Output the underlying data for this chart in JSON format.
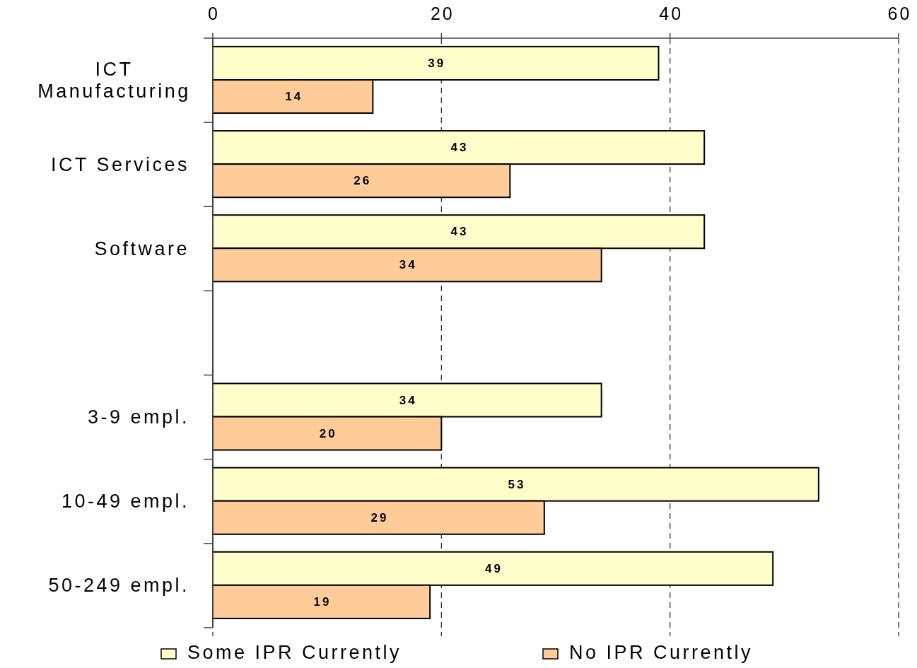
{
  "chart_data": {
    "type": "bar",
    "orientation": "horizontal",
    "categories": [
      "ICT Manufacturing",
      "ICT Services",
      "Software",
      null,
      "3-9 empl.",
      "10-49 empl.",
      "50-249 empl."
    ],
    "series": [
      {
        "name": "Some IPR Currently",
        "color": "#ffffcc",
        "values": [
          39,
          43,
          43,
          null,
          34,
          53,
          49
        ]
      },
      {
        "name": "No IPR Currently",
        "color": "#ffcc99",
        "values": [
          14,
          26,
          34,
          null,
          20,
          29,
          19
        ]
      }
    ],
    "xlim": [
      0,
      60
    ],
    "xticks": [
      0,
      20,
      40,
      60
    ],
    "grid": "x",
    "legend": "bottom",
    "data_labels": true
  }
}
